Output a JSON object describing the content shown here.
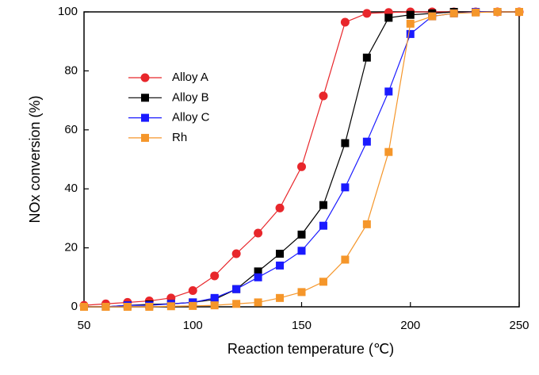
{
  "chart_data": {
    "type": "line",
    "x_label": "Reaction temperature (℃)",
    "y_label": "NOx conversion (%)",
    "x": [
      50,
      60,
      70,
      80,
      90,
      100,
      110,
      120,
      130,
      140,
      150,
      160,
      170,
      180,
      190,
      200,
      210,
      220,
      230,
      240,
      250
    ],
    "series": [
      {
        "name": "Alloy A",
        "color": "#e8262b",
        "marker": "circle",
        "values": [
          0.5,
          1,
          1.5,
          2,
          3,
          5.5,
          10.5,
          18,
          25,
          33.5,
          47.5,
          71.5,
          96.5,
          99.5,
          99.8,
          100,
          100,
          100,
          100,
          100,
          100
        ]
      },
      {
        "name": "Alloy B",
        "color": "#000000",
        "marker": "square",
        "values": [
          0,
          0,
          0.5,
          0.8,
          1,
          1.5,
          2.5,
          6,
          12,
          18,
          24.5,
          34.5,
          55.5,
          84.5,
          98,
          99,
          99.5,
          100,
          100,
          100,
          100
        ]
      },
      {
        "name": "Alloy C",
        "color": "#1a1aff",
        "marker": "square",
        "values": [
          0,
          0,
          0.5,
          0.5,
          1,
          1.5,
          3,
          6,
          10,
          14,
          19,
          27.5,
          40.5,
          56,
          73,
          92.5,
          98.5,
          99.5,
          100,
          100,
          100
        ]
      },
      {
        "name": "Rh",
        "color": "#f5962a",
        "marker": "square",
        "values": [
          0,
          0,
          0,
          0,
          0.2,
          0.3,
          0.5,
          1,
          1.5,
          3,
          5,
          8.5,
          16,
          28,
          52.5,
          96,
          98.5,
          99.5,
          99.8,
          100,
          100
        ]
      }
    ],
    "xlim": [
      50,
      250
    ],
    "ylim": [
      0,
      100
    ],
    "xticks": [
      50,
      100,
      150,
      200,
      250
    ],
    "yticks": [
      0,
      20,
      40,
      60,
      80,
      100
    ],
    "grid": false,
    "legend": "upper left"
  }
}
